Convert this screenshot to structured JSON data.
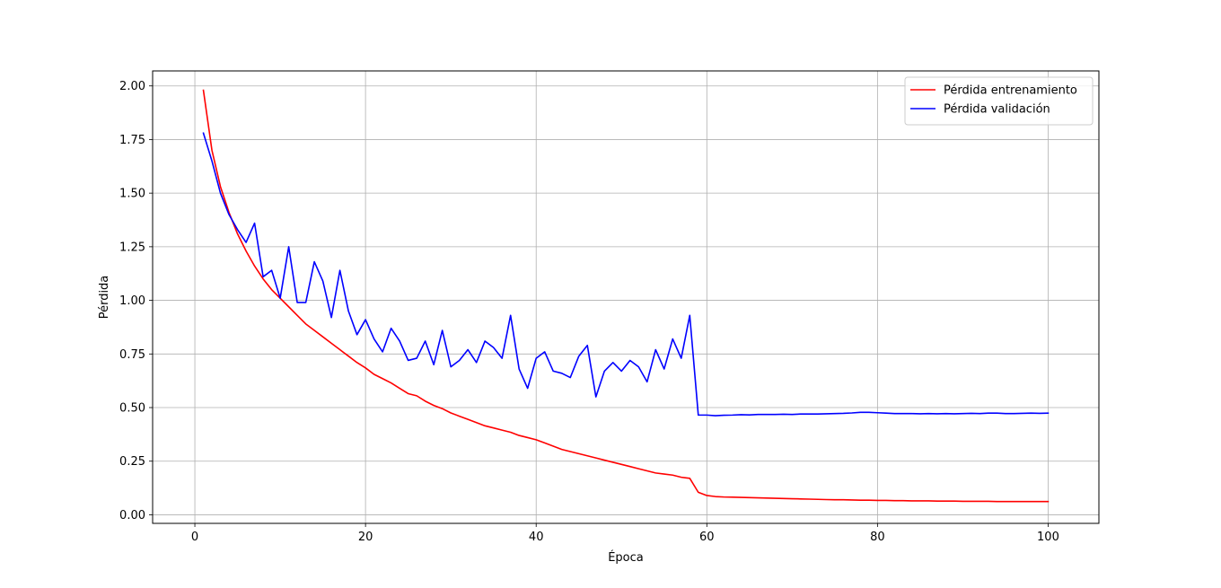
{
  "chart_data": {
    "type": "line",
    "title": "",
    "xlabel": "Época",
    "ylabel": "Pérdida",
    "xlim": [
      -4.95,
      105.95
    ],
    "ylim": [
      -0.04,
      2.07
    ],
    "xticks": [
      0,
      20,
      40,
      60,
      80,
      100
    ],
    "xtick_labels": [
      "0",
      "20",
      "40",
      "60",
      "80",
      "100"
    ],
    "yticks": [
      0.0,
      0.25,
      0.5,
      0.75,
      1.0,
      1.25,
      1.5,
      1.75,
      2.0
    ],
    "ytick_labels": [
      "0.00",
      "0.25",
      "0.50",
      "0.75",
      "1.00",
      "1.25",
      "1.50",
      "1.75",
      "2.00"
    ],
    "grid": true,
    "legend_position": "top-right",
    "x": [
      1,
      2,
      3,
      4,
      5,
      6,
      7,
      8,
      9,
      10,
      11,
      12,
      13,
      14,
      15,
      16,
      17,
      18,
      19,
      20,
      21,
      22,
      23,
      24,
      25,
      26,
      27,
      28,
      29,
      30,
      31,
      32,
      33,
      34,
      35,
      36,
      37,
      38,
      39,
      40,
      41,
      42,
      43,
      44,
      45,
      46,
      47,
      48,
      49,
      50,
      51,
      52,
      53,
      54,
      55,
      56,
      57,
      58,
      59,
      60,
      61,
      62,
      63,
      64,
      65,
      66,
      67,
      68,
      69,
      70,
      71,
      72,
      73,
      74,
      75,
      76,
      77,
      78,
      79,
      80,
      81,
      82,
      83,
      84,
      85,
      86,
      87,
      88,
      89,
      90,
      91,
      92,
      93,
      94,
      95,
      96,
      97,
      98,
      99,
      100
    ],
    "series": [
      {
        "name": "Pérdida entrenamiento",
        "color": "#ff0000",
        "values": [
          1.98,
          1.7,
          1.53,
          1.41,
          1.31,
          1.23,
          1.16,
          1.1,
          1.05,
          1.01,
          0.97,
          0.93,
          0.89,
          0.86,
          0.83,
          0.8,
          0.77,
          0.74,
          0.71,
          0.685,
          0.655,
          0.635,
          0.615,
          0.59,
          0.565,
          0.555,
          0.53,
          0.51,
          0.495,
          0.475,
          0.46,
          0.445,
          0.43,
          0.415,
          0.405,
          0.395,
          0.385,
          0.37,
          0.36,
          0.35,
          0.335,
          0.32,
          0.305,
          0.295,
          0.285,
          0.275,
          0.265,
          0.255,
          0.245,
          0.235,
          0.225,
          0.215,
          0.205,
          0.195,
          0.19,
          0.185,
          0.175,
          0.17,
          0.105,
          0.09,
          0.085,
          0.083,
          0.082,
          0.081,
          0.08,
          0.079,
          0.078,
          0.077,
          0.076,
          0.075,
          0.074,
          0.073,
          0.072,
          0.071,
          0.07,
          0.07,
          0.069,
          0.068,
          0.068,
          0.067,
          0.067,
          0.066,
          0.066,
          0.065,
          0.065,
          0.065,
          0.064,
          0.064,
          0.064,
          0.063,
          0.063,
          0.063,
          0.063,
          0.062,
          0.062,
          0.062,
          0.062,
          0.062,
          0.062,
          0.062
        ]
      },
      {
        "name": "Pérdida validación",
        "color": "#0000ff",
        "values": [
          1.78,
          1.65,
          1.5,
          1.4,
          1.33,
          1.27,
          1.36,
          1.11,
          1.14,
          1.01,
          1.25,
          0.99,
          0.99,
          1.18,
          1.09,
          0.92,
          1.14,
          0.95,
          0.84,
          0.91,
          0.82,
          0.76,
          0.87,
          0.81,
          0.72,
          0.73,
          0.81,
          0.7,
          0.86,
          0.69,
          0.72,
          0.77,
          0.71,
          0.81,
          0.78,
          0.73,
          0.93,
          0.68,
          0.59,
          0.73,
          0.76,
          0.67,
          0.66,
          0.64,
          0.74,
          0.79,
          0.55,
          0.67,
          0.71,
          0.67,
          0.72,
          0.69,
          0.62,
          0.77,
          0.68,
          0.82,
          0.73,
          0.93,
          0.465,
          0.465,
          0.462,
          0.464,
          0.465,
          0.467,
          0.466,
          0.468,
          0.468,
          0.468,
          0.469,
          0.468,
          0.47,
          0.47,
          0.47,
          0.471,
          0.472,
          0.473,
          0.475,
          0.478,
          0.478,
          0.476,
          0.474,
          0.472,
          0.472,
          0.472,
          0.471,
          0.472,
          0.471,
          0.472,
          0.471,
          0.472,
          0.473,
          0.472,
          0.474,
          0.474,
          0.472,
          0.472,
          0.473,
          0.474,
          0.473,
          0.474
        ]
      }
    ]
  }
}
